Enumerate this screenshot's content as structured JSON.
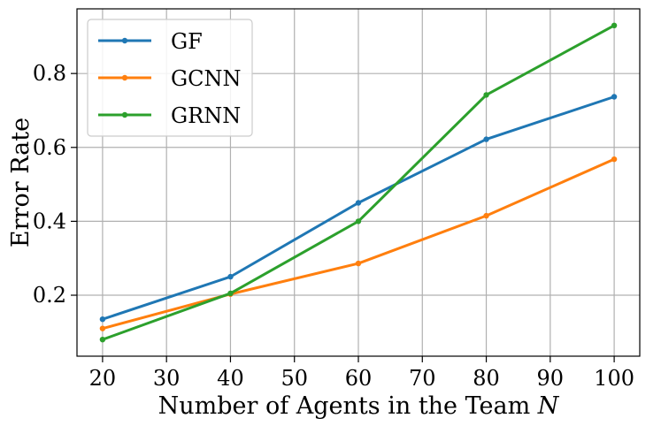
{
  "chart_data": {
    "type": "line",
    "x": [
      20,
      40,
      60,
      80,
      100
    ],
    "series": [
      {
        "name": "GF",
        "values": [
          0.135,
          0.25,
          0.45,
          0.622,
          0.737
        ],
        "color": "#1f77b4"
      },
      {
        "name": "GCNN",
        "values": [
          0.11,
          0.203,
          0.286,
          0.415,
          0.568
        ],
        "color": "#ff7f0e"
      },
      {
        "name": "GRNN",
        "values": [
          0.08,
          0.205,
          0.4,
          0.742,
          0.93
        ],
        "color": "#2ca02c"
      }
    ],
    "xlabel": "Number of Agents in the Team N",
    "ylabel": "Error Rate",
    "xlim": [
      16,
      104
    ],
    "ylim": [
      0.035,
      0.975
    ],
    "xticks": [
      20,
      30,
      40,
      50,
      60,
      70,
      80,
      90,
      100
    ],
    "xtick_labels": [
      "20",
      "30",
      "40",
      "50",
      "60",
      "70",
      "80",
      "90",
      "100"
    ],
    "yticks": [
      0.2,
      0.4,
      0.6,
      0.8
    ],
    "ytick_labels": [
      "0.2",
      "0.4",
      "0.6",
      "0.8"
    ],
    "grid": true,
    "legend_position": "top-left"
  }
}
